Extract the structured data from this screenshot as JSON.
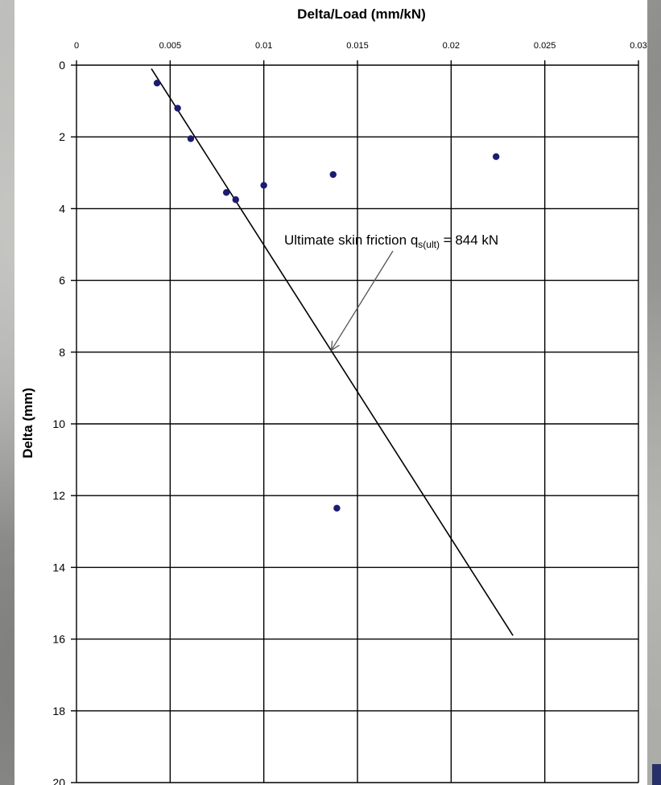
{
  "chart_data": {
    "type": "scatter",
    "title": "",
    "xlabel": "Delta/Load (mm/kN)",
    "ylabel": "Delta (mm)",
    "xlim": [
      0,
      0.03
    ],
    "ylim": [
      0,
      20
    ],
    "y_inverted": true,
    "x_axis_position": "top",
    "grid": true,
    "x_ticks": [
      {
        "value": 0,
        "label": "0"
      },
      {
        "value": 0.005,
        "label": "0.005"
      },
      {
        "value": 0.01,
        "label": "0.01"
      },
      {
        "value": 0.015,
        "label": "0.015"
      },
      {
        "value": 0.02,
        "label": "0.02"
      },
      {
        "value": 0.025,
        "label": "0.025"
      },
      {
        "value": 0.03,
        "label": "0.03"
      }
    ],
    "y_ticks": [
      {
        "value": 0,
        "label": "0"
      },
      {
        "value": 2,
        "label": "2"
      },
      {
        "value": 4,
        "label": "4"
      },
      {
        "value": 6,
        "label": "6"
      },
      {
        "value": 8,
        "label": "8"
      },
      {
        "value": 10,
        "label": "10"
      },
      {
        "value": 12,
        "label": "12"
      },
      {
        "value": 14,
        "label": "14"
      },
      {
        "value": 16,
        "label": "16"
      },
      {
        "value": 18,
        "label": "18"
      },
      {
        "value": 20,
        "label": "20"
      }
    ],
    "series": [
      {
        "marker_color": "#1a1a7a",
        "points": [
          {
            "x": 0.0043,
            "y": 0.5
          },
          {
            "x": 0.0054,
            "y": 1.2
          },
          {
            "x": 0.0061,
            "y": 2.05
          },
          {
            "x": 0.008,
            "y": 3.55
          },
          {
            "x": 0.0085,
            "y": 3.75
          },
          {
            "x": 0.01,
            "y": 3.35
          },
          {
            "x": 0.0137,
            "y": 3.05
          },
          {
            "x": 0.0224,
            "y": 2.55
          },
          {
            "x": 0.0139,
            "y": 12.35
          }
        ]
      }
    ],
    "trendline": {
      "color": "#000000",
      "points": [
        {
          "x": 0.004,
          "y": 0.1
        },
        {
          "x": 0.0233,
          "y": 15.9
        }
      ]
    },
    "annotation": {
      "text_main": "Ultimate skin friction q",
      "text_sub": "s(ult)",
      "text_tail": " = 844 kN",
      "arrow_target": {
        "x": 0.0136,
        "y": 7.95
      }
    }
  }
}
